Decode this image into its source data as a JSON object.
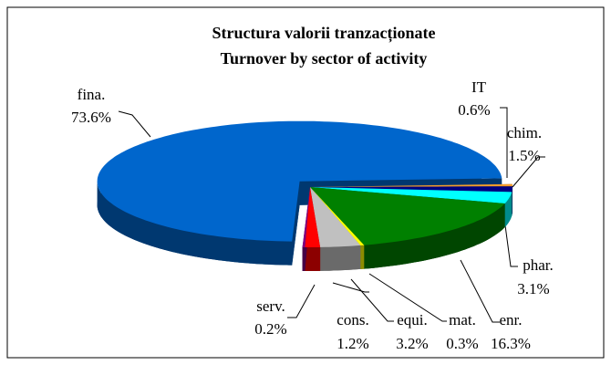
{
  "chart_data": {
    "type": "pie",
    "title": [
      "Structura valorii tranzacționate",
      "Turnover by sector of activity"
    ],
    "categories": [
      "IT",
      "chim.",
      "phar.",
      "enr.",
      "mat.",
      "equi.",
      "cons.",
      "serv.",
      "fina."
    ],
    "values": [
      0.6,
      1.5,
      3.1,
      16.3,
      0.3,
      3.2,
      1.2,
      0.2,
      73.6
    ],
    "value_labels": [
      "0.6%",
      "1.5%",
      "3.1%",
      "16.3%",
      "0.3%",
      "3.2%",
      "1.2%",
      "0.2%",
      "73.6%"
    ],
    "colors": [
      "#f39c2a",
      "#000080",
      "#00ffff",
      "#008000",
      "#ffff00",
      "#c0c0c0",
      "#ff0000",
      "#800080",
      "#0066cc"
    ],
    "exploded": [
      false,
      false,
      false,
      false,
      false,
      false,
      false,
      false,
      true
    ]
  }
}
